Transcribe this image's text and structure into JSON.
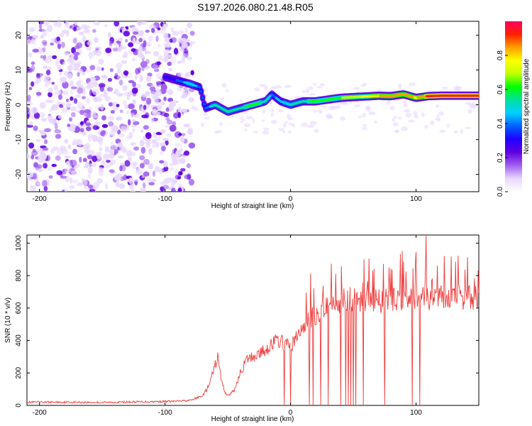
{
  "page_title": "S197.2026.080.21.48.R05",
  "colors": {
    "signal_line": "#ee3a3a",
    "axis": "#000000",
    "background": "#ffffff"
  },
  "chart_data": [
    {
      "type": "heatmap",
      "title": "S197.2026.080.21.48.R05",
      "xlabel": "Height of straight line (km)",
      "ylabel": "Frequency (Hz)",
      "xlim": [
        -210,
        150
      ],
      "ylim": [
        -25,
        24
      ],
      "x_ticks": [
        -200,
        -100,
        0,
        100
      ],
      "x_tick_labels": [
        "-200",
        "-100",
        "0",
        "100"
      ],
      "y_ticks": [
        20,
        10,
        0,
        -10,
        -20
      ],
      "y_tick_labels": [
        "20",
        "10",
        "0",
        "-10",
        "-20"
      ],
      "ridge": {
        "x": [
          -100,
          -90,
          -80,
          -72,
          -68,
          -60,
          -50,
          -40,
          -30,
          -20,
          -15,
          -8,
          0,
          10,
          20,
          30,
          40,
          50,
          60,
          70,
          80,
          90,
          100,
          110,
          120,
          130,
          150
        ],
        "freq": [
          8,
          7,
          6,
          5,
          -1,
          0,
          -2,
          -1,
          0,
          1,
          3,
          1,
          0,
          1,
          1,
          1.5,
          2,
          2.2,
          2.4,
          2.6,
          2.5,
          3,
          2,
          2.5,
          2.6,
          2.6,
          2.6
        ],
        "amplitude": [
          0.3,
          0.35,
          0.5,
          0.4,
          0.35,
          0.55,
          0.5,
          0.55,
          0.6,
          0.55,
          0.4,
          0.45,
          0.5,
          0.55,
          0.6,
          0.6,
          0.65,
          0.7,
          0.75,
          0.8,
          0.85,
          0.85,
          0.8,
          0.9,
          0.95,
          0.95,
          0.95
        ]
      },
      "noise_region_x": [
        -210,
        -78
      ],
      "colorbar": {
        "label": "Normalized spectral amplitude",
        "range": [
          0,
          1
        ],
        "ticks": [
          0.0,
          0.2,
          0.4,
          0.6,
          0.8
        ],
        "tick_labels": [
          "0.0",
          "0.2",
          "0.4",
          "0.6",
          "0.8"
        ],
        "stops": [
          "#ffffff",
          "#e8d8ff",
          "#a060f0",
          "#6000e0",
          "#2000ff",
          "#0060ff",
          "#00d0ff",
          "#00e0a0",
          "#00ff00",
          "#c0ff00",
          "#ffff00",
          "#ffa000",
          "#ff2000",
          "#ff0060"
        ]
      }
    },
    {
      "type": "line",
      "xlabel": "Height of straight line (km)",
      "ylabel": "SNR (10 * v/v)",
      "xlim": [
        -210,
        150
      ],
      "ylim": [
        0,
        1050
      ],
      "x_ticks": [
        -200,
        -100,
        0,
        100
      ],
      "x_tick_labels": [
        "-200",
        "-100",
        "0",
        "100"
      ],
      "y_ticks": [
        0,
        200,
        400,
        600,
        800,
        1000
      ],
      "y_tick_labels": [
        "0",
        "200",
        "400",
        "600",
        "800",
        "1000"
      ],
      "series": [
        {
          "name": "SNR",
          "x": [
            -210,
            -180,
            -150,
            -120,
            -95,
            -80,
            -70,
            -65,
            -60,
            -58,
            -55,
            -52,
            -50,
            -45,
            -40,
            -35,
            -30,
            -25,
            -20,
            -15,
            -10,
            -5,
            0,
            5,
            10,
            15,
            20,
            25,
            30,
            35,
            40,
            45,
            50,
            55,
            60,
            65,
            70,
            75,
            80,
            85,
            90,
            95,
            100,
            105,
            108,
            110,
            115,
            120,
            130,
            140,
            150
          ],
          "values": [
            20,
            20,
            18,
            22,
            25,
            30,
            60,
            120,
            250,
            300,
            150,
            80,
            60,
            90,
            200,
            280,
            300,
            320,
            340,
            380,
            400,
            380,
            360,
            420,
            480,
            520,
            560,
            600,
            620,
            640,
            640,
            650,
            660,
            640,
            650,
            660,
            650,
            640,
            650,
            660,
            650,
            640,
            660,
            680,
            700,
            640,
            650,
            660,
            670,
            660,
            670
          ]
        }
      ],
      "dropouts_x": [
        -5,
        0,
        15,
        18,
        24,
        30,
        40,
        44,
        46,
        48,
        50,
        52,
        58,
        75,
        97,
        103,
        108
      ]
    }
  ]
}
